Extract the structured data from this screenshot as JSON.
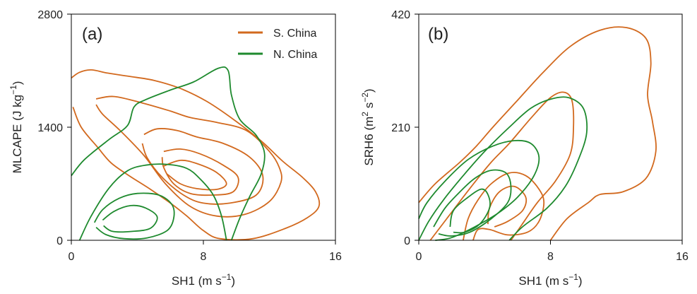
{
  "colors": {
    "s_china": "#D2691E",
    "n_china": "#1E8A2E",
    "axis": "#000000"
  },
  "chart_data": [
    {
      "type": "contour",
      "panel_label": "(a)",
      "xlabel": {
        "base": "SH1 (m s",
        "exp": "−1",
        "tail": ")"
      },
      "ylabel": {
        "base": "MLCAPE (J kg",
        "exp": "−1",
        "tail": ")"
      },
      "xlim": [
        0,
        16
      ],
      "ylim": [
        0,
        2800
      ],
      "xticks": [
        "0",
        "8",
        "16"
      ],
      "yticks": [
        "0",
        "1400",
        "2800"
      ],
      "legend": {
        "position": "top-right",
        "entries": [
          "S. China",
          "N. China"
        ]
      },
      "series": [
        {
          "name": "S. China",
          "color_key": "s_china",
          "contours": [
            [
              [
                0.1,
                1650
              ],
              [
                0.6,
                1400
              ],
              [
                1.6,
                1150
              ],
              [
                2.4,
                960
              ],
              [
                3.5,
                800
              ],
              [
                4.8,
                630
              ],
              [
                6.0,
                460
              ],
              [
                7.0,
                300
              ],
              [
                8.0,
                120
              ],
              [
                9.0,
                20
              ],
              [
                11.0,
                20
              ],
              [
                13.0,
                150
              ],
              [
                14.3,
                280
              ],
              [
                15.0,
                420
              ],
              [
                14.8,
                600
              ],
              [
                14.0,
                780
              ],
              [
                12.8,
                980
              ],
              [
                11.5,
                1230
              ],
              [
                9.8,
                1500
              ],
              [
                8.2,
                1720
              ],
              [
                6.6,
                1880
              ],
              [
                5.0,
                1980
              ],
              [
                3.5,
                2030
              ],
              [
                2.2,
                2070
              ],
              [
                1.2,
                2110
              ],
              [
                0.5,
                2080
              ],
              [
                0.0,
                2010
              ]
            ],
            [
              [
                1.5,
                1750
              ],
              [
                2.6,
                1780
              ],
              [
                4.3,
                1700
              ],
              [
                6.0,
                1600
              ],
              [
                7.2,
                1520
              ],
              [
                8.8,
                1460
              ],
              [
                10.6,
                1360
              ],
              [
                12.0,
                1100
              ],
              [
                12.6,
                900
              ],
              [
                12.7,
                720
              ],
              [
                12.0,
                480
              ],
              [
                10.5,
                320
              ],
              [
                8.8,
                300
              ],
              [
                7.2,
                420
              ],
              [
                5.7,
                700
              ],
              [
                4.4,
                1050
              ],
              [
                3.0,
                1350
              ],
              [
                1.9,
                1560
              ],
              [
                1.5,
                1680
              ]
            ],
            [
              [
                4.4,
                1310
              ],
              [
                5.2,
                1380
              ],
              [
                6.4,
                1360
              ],
              [
                7.6,
                1280
              ],
              [
                9.2,
                1200
              ],
              [
                10.8,
                1030
              ],
              [
                11.6,
                800
              ],
              [
                11.2,
                560
              ],
              [
                9.6,
                460
              ],
              [
                8.0,
                460
              ],
              [
                6.8,
                560
              ],
              [
                5.5,
                780
              ],
              [
                4.6,
                1020
              ],
              [
                4.3,
                1200
              ]
            ],
            [
              [
                5.6,
                1100
              ],
              [
                6.6,
                1130
              ],
              [
                7.8,
                1070
              ],
              [
                9.2,
                930
              ],
              [
                10.1,
                780
              ],
              [
                9.8,
                600
              ],
              [
                8.6,
                560
              ],
              [
                7.2,
                580
              ],
              [
                6.2,
                700
              ],
              [
                5.6,
                900
              ],
              [
                5.5,
                1030
              ]
            ],
            [
              [
                5.6,
                920
              ],
              [
                6.6,
                990
              ],
              [
                7.6,
                950
              ],
              [
                8.8,
                840
              ],
              [
                9.4,
                700
              ],
              [
                8.8,
                630
              ],
              [
                7.6,
                640
              ],
              [
                6.6,
                700
              ],
              [
                5.8,
                820
              ]
            ]
          ]
        },
        {
          "name": "N. China",
          "color_key": "n_china",
          "contours": [
            [
              [
                0.0,
                800
              ],
              [
                0.8,
                1000
              ],
              [
                2.3,
                1250
              ],
              [
                3.4,
                1420
              ],
              [
                3.8,
                1650
              ],
              [
                4.5,
                1740
              ],
              [
                6.0,
                1860
              ],
              [
                7.4,
                1960
              ],
              [
                8.9,
                2130
              ],
              [
                9.5,
                2100
              ],
              [
                9.7,
                1800
              ],
              [
                10.2,
                1500
              ],
              [
                11.2,
                1300
              ],
              [
                11.7,
                1080
              ],
              [
                11.5,
                820
              ],
              [
                10.8,
                540
              ],
              [
                10.2,
                270
              ],
              [
                9.7,
                0
              ]
            ],
            [
              [
                0.5,
                0
              ],
              [
                1.2,
                300
              ],
              [
                2.3,
                650
              ],
              [
                3.4,
                860
              ],
              [
                4.5,
                930
              ],
              [
                5.8,
                940
              ],
              [
                7.0,
                890
              ],
              [
                7.8,
                760
              ],
              [
                8.6,
                560
              ],
              [
                9.1,
                300
              ],
              [
                9.4,
                0
              ]
            ],
            [
              [
                1.4,
                220
              ],
              [
                1.9,
                380
              ],
              [
                2.9,
                520
              ],
              [
                4.0,
                580
              ],
              [
                5.3,
                560
              ],
              [
                6.1,
                440
              ],
              [
                6.2,
                270
              ],
              [
                5.8,
                120
              ],
              [
                4.6,
                30
              ],
              [
                3.2,
                20
              ],
              [
                2.1,
                70
              ],
              [
                1.5,
                160
              ]
            ],
            [
              [
                1.9,
                250
              ],
              [
                2.6,
                360
              ],
              [
                3.6,
                430
              ],
              [
                4.5,
                400
              ],
              [
                5.2,
                290
              ],
              [
                4.8,
                150
              ],
              [
                3.7,
                110
              ],
              [
                2.5,
                110
              ],
              [
                1.95,
                180
              ]
            ]
          ]
        }
      ]
    },
    {
      "type": "contour",
      "panel_label": "(b)",
      "xlabel": {
        "base": "SH1 (m s",
        "exp": "−1",
        "tail": ")"
      },
      "ylabel": {
        "base": "SRH6 (m",
        "exp": "2",
        "mid": " s",
        "exp2": "−2",
        "tail": ")"
      },
      "xlim": [
        0,
        16
      ],
      "ylim": [
        0,
        420
      ],
      "xticks": [
        "0",
        "8",
        "16"
      ],
      "yticks": [
        "0",
        "210",
        "420"
      ],
      "series": [
        {
          "name": "S. China",
          "color_key": "s_china",
          "contours": [
            [
              [
                0.0,
                70
              ],
              [
                1.0,
                105
              ],
              [
                2.5,
                145
              ],
              [
                3.5,
                175
              ],
              [
                4.5,
                210
              ],
              [
                6.0,
                260
              ],
              [
                7.5,
                310
              ],
              [
                9.2,
                360
              ],
              [
                11.0,
                390
              ],
              [
                12.6,
                395
              ],
              [
                13.8,
                375
              ],
              [
                14.1,
                330
              ],
              [
                13.9,
                270
              ],
              [
                14.2,
                220
              ],
              [
                14.4,
                165
              ],
              [
                13.8,
                115
              ],
              [
                12.4,
                90
              ],
              [
                11.0,
                85
              ],
              [
                10.3,
                70
              ],
              [
                9.0,
                40
              ],
              [
                8.0,
                0
              ]
            ],
            [
              [
                0.7,
                0
              ],
              [
                1.7,
                40
              ],
              [
                3.2,
                100
              ],
              [
                4.4,
                145
              ],
              [
                5.5,
                180
              ],
              [
                6.9,
                230
              ],
              [
                8.0,
                265
              ],
              [
                8.8,
                275
              ],
              [
                9.3,
                260
              ],
              [
                9.4,
                210
              ],
              [
                9.2,
                160
              ],
              [
                8.3,
                110
              ],
              [
                7.2,
                70
              ],
              [
                6.4,
                35
              ],
              [
                5.6,
                0
              ]
            ],
            [
              [
                2.7,
                0
              ],
              [
                3.0,
                40
              ],
              [
                3.6,
                75
              ],
              [
                4.4,
                105
              ],
              [
                5.5,
                125
              ],
              [
                6.5,
                120
              ],
              [
                7.3,
                95
              ],
              [
                7.6,
                70
              ],
              [
                7.3,
                35
              ],
              [
                6.6,
                15
              ],
              [
                5.4,
                10
              ],
              [
                4.3,
                20
              ],
              [
                3.6,
                20
              ],
              [
                3.3,
                0
              ]
            ],
            [
              [
                4.2,
                30
              ],
              [
                4.3,
                60
              ],
              [
                4.9,
                90
              ],
              [
                5.8,
                100
              ],
              [
                6.5,
                80
              ],
              [
                6.3,
                55
              ],
              [
                5.4,
                35
              ],
              [
                4.6,
                25
              ]
            ]
          ]
        },
        {
          "name": "N. China",
          "color_key": "n_china",
          "contours": [
            [
              [
                0.0,
                0
              ],
              [
                0.6,
                35
              ],
              [
                1.5,
                75
              ],
              [
                2.7,
                120
              ],
              [
                4.0,
                165
              ],
              [
                5.5,
                210
              ],
              [
                6.8,
                245
              ],
              [
                8.0,
                262
              ],
              [
                9.1,
                265
              ],
              [
                10.0,
                245
              ],
              [
                10.2,
                200
              ],
              [
                9.7,
                150
              ],
              [
                8.9,
                100
              ],
              [
                7.8,
                60
              ],
              [
                6.3,
                25
              ],
              [
                5.5,
                0
              ]
            ],
            [
              [
                0.0,
                40
              ],
              [
                0.5,
                70
              ],
              [
                1.6,
                110
              ],
              [
                3.0,
                150
              ],
              [
                4.5,
                175
              ],
              [
                5.8,
                185
              ],
              [
                6.8,
                180
              ],
              [
                7.3,
                155
              ],
              [
                7.0,
                120
              ],
              [
                6.0,
                80
              ],
              [
                4.8,
                50
              ],
              [
                3.4,
                25
              ],
              [
                2.0,
                5
              ],
              [
                1.0,
                0
              ]
            ],
            [
              [
                0.9,
                25
              ],
              [
                1.6,
                60
              ],
              [
                2.5,
                90
              ],
              [
                3.4,
                115
              ],
              [
                4.4,
                130
              ],
              [
                5.3,
                125
              ],
              [
                5.6,
                100
              ],
              [
                5.4,
                70
              ],
              [
                4.4,
                40
              ],
              [
                3.1,
                15
              ],
              [
                2.0,
                8
              ],
              [
                1.2,
                12
              ]
            ],
            [
              [
                1.9,
                25
              ],
              [
                2.1,
                55
              ],
              [
                3.0,
                80
              ],
              [
                3.8,
                95
              ],
              [
                4.2,
                85
              ],
              [
                4.3,
                60
              ],
              [
                3.7,
                30
              ],
              [
                2.8,
                15
              ],
              [
                2.1,
                15
              ]
            ]
          ]
        }
      ]
    }
  ]
}
